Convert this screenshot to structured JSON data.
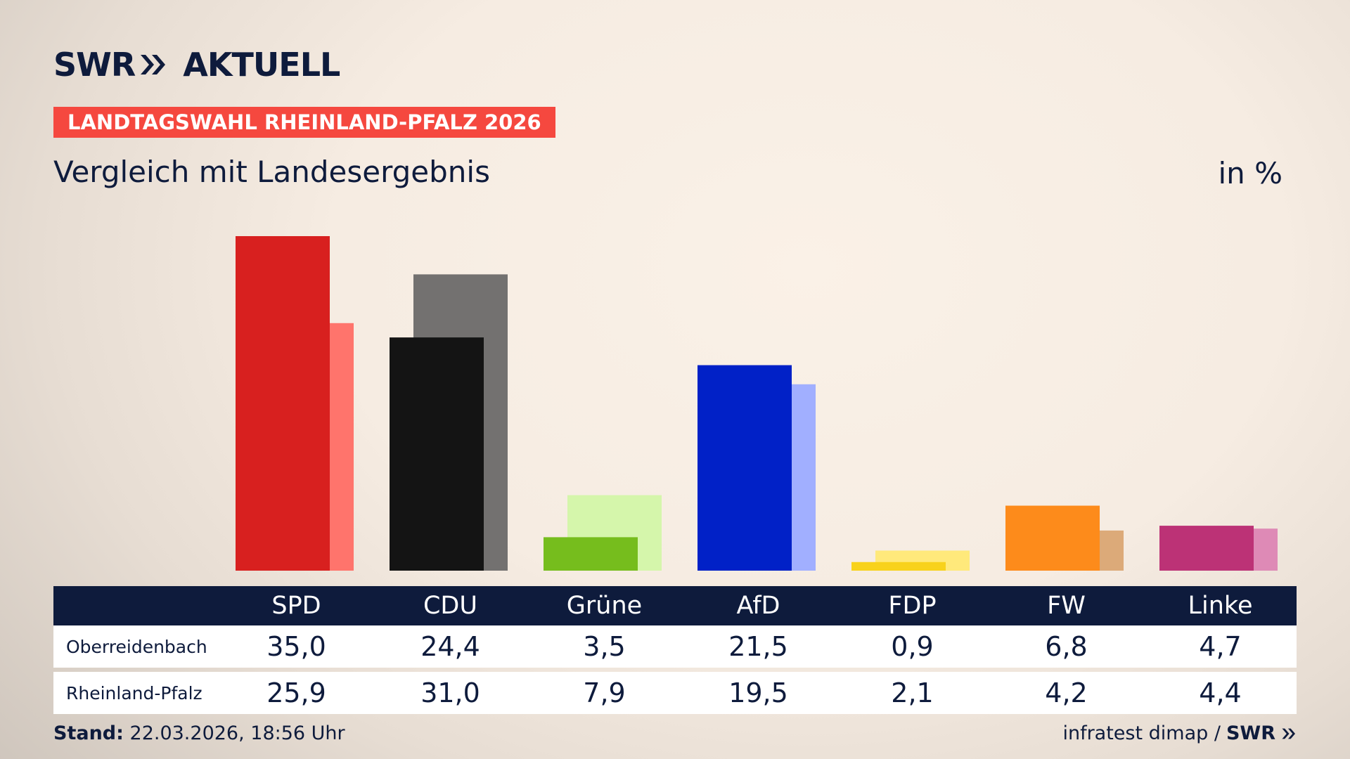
{
  "brand": {
    "swr": "SWR",
    "aktuell": "AKTUELL"
  },
  "badge": "LANDTAGSWAHL RHEINLAND-PFALZ 2026",
  "subtitle": "Vergleich mit Landesergebnis",
  "unit": "in %",
  "colors": {
    "navy": "#0e1b3c",
    "badge": "#f5483f"
  },
  "chart_data": {
    "type": "bar",
    "categories": [
      "SPD",
      "CDU",
      "Grüne",
      "AfD",
      "FDP",
      "FW",
      "Linke"
    ],
    "series": [
      {
        "name": "Oberreidenbach",
        "values": [
          35.0,
          24.4,
          3.5,
          21.5,
          0.9,
          6.8,
          4.7
        ],
        "colors": [
          "#d8201f",
          "#141414",
          "#76bd1d",
          "#0121c7",
          "#f8d21c",
          "#fd8b1b",
          "#bc3276"
        ]
      },
      {
        "name": "Rheinland-Pfalz",
        "values": [
          25.9,
          31.0,
          7.9,
          19.5,
          2.1,
          4.2,
          4.4
        ],
        "colors": [
          "#ff746c",
          "#737170",
          "#d5f6ab",
          "#a1afff",
          "#ffe97b",
          "#dcaa79",
          "#de8ab6"
        ]
      }
    ],
    "ylim": [
      0,
      36
    ],
    "grid": false
  },
  "table": {
    "headers": [
      "SPD",
      "CDU",
      "Grüne",
      "AfD",
      "FDP",
      "FW",
      "Linke"
    ],
    "rows": [
      {
        "label": "Oberreidenbach",
        "values": [
          "35,0",
          "24,4",
          "3,5",
          "21,5",
          "0,9",
          "6,8",
          "4,7"
        ]
      },
      {
        "label": "Rheinland-Pfalz",
        "values": [
          "25,9",
          "31,0",
          "7,9",
          "19,5",
          "2,1",
          "4,2",
          "4,4"
        ]
      }
    ]
  },
  "footer": {
    "stand_label": "Stand:",
    "stand_value": "22.03.2026, 18:56 Uhr",
    "source": "infratest dimap /",
    "source_brand": "SWR"
  }
}
